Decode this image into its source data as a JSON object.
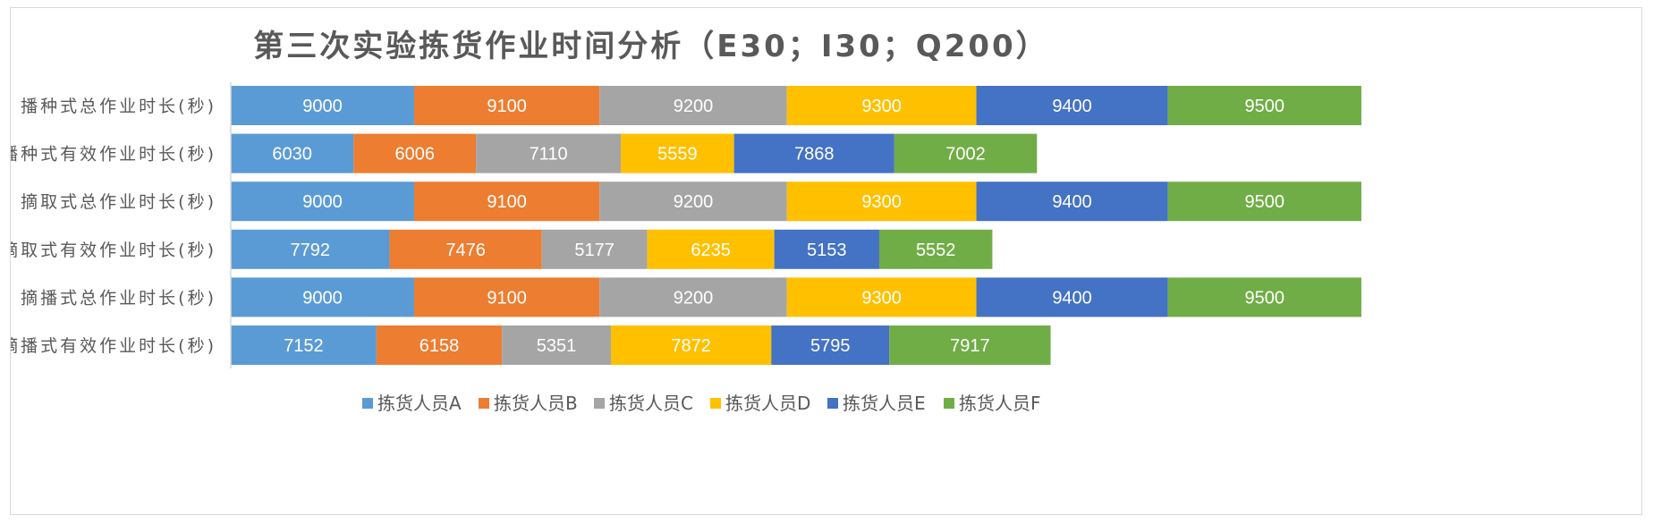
{
  "chart_data": {
    "type": "bar",
    "orientation": "horizontal",
    "stacked": true,
    "title": "第三次实验拣货作业时间分析（E30；I30；Q200）",
    "categories": [
      "播种式总作业时长(秒)",
      "播种式有效作业时长(秒)",
      "摘取式总作业时长(秒)",
      "摘取式有效作业时长(秒)",
      "摘播式总作业时长(秒)",
      "摘播式有效作业时长(秒)"
    ],
    "series": [
      {
        "name": "拣货人员A",
        "color": "#5B9BD5",
        "values": [
          9000,
          6030,
          9000,
          7792,
          9000,
          7152
        ]
      },
      {
        "name": "拣货人员B",
        "color": "#ED7D31",
        "values": [
          9100,
          6006,
          9100,
          7476,
          9100,
          6158
        ]
      },
      {
        "name": "拣货人员C",
        "color": "#A5A5A5",
        "values": [
          9200,
          7110,
          9200,
          5177,
          9200,
          5351
        ]
      },
      {
        "name": "拣货人员D",
        "color": "#FFC000",
        "values": [
          9300,
          5559,
          9300,
          6235,
          9300,
          7872
        ]
      },
      {
        "name": "拣货人员E",
        "color": "#4472C4",
        "values": [
          9400,
          7868,
          9400,
          5153,
          9400,
          5795
        ]
      },
      {
        "name": "拣货人员F",
        "color": "#70AD47",
        "values": [
          9500,
          7002,
          9500,
          5552,
          9500,
          7917
        ]
      }
    ],
    "xlim": [
      0,
      62000
    ],
    "grid": false,
    "legend": "bottom",
    "data_labels": true
  }
}
